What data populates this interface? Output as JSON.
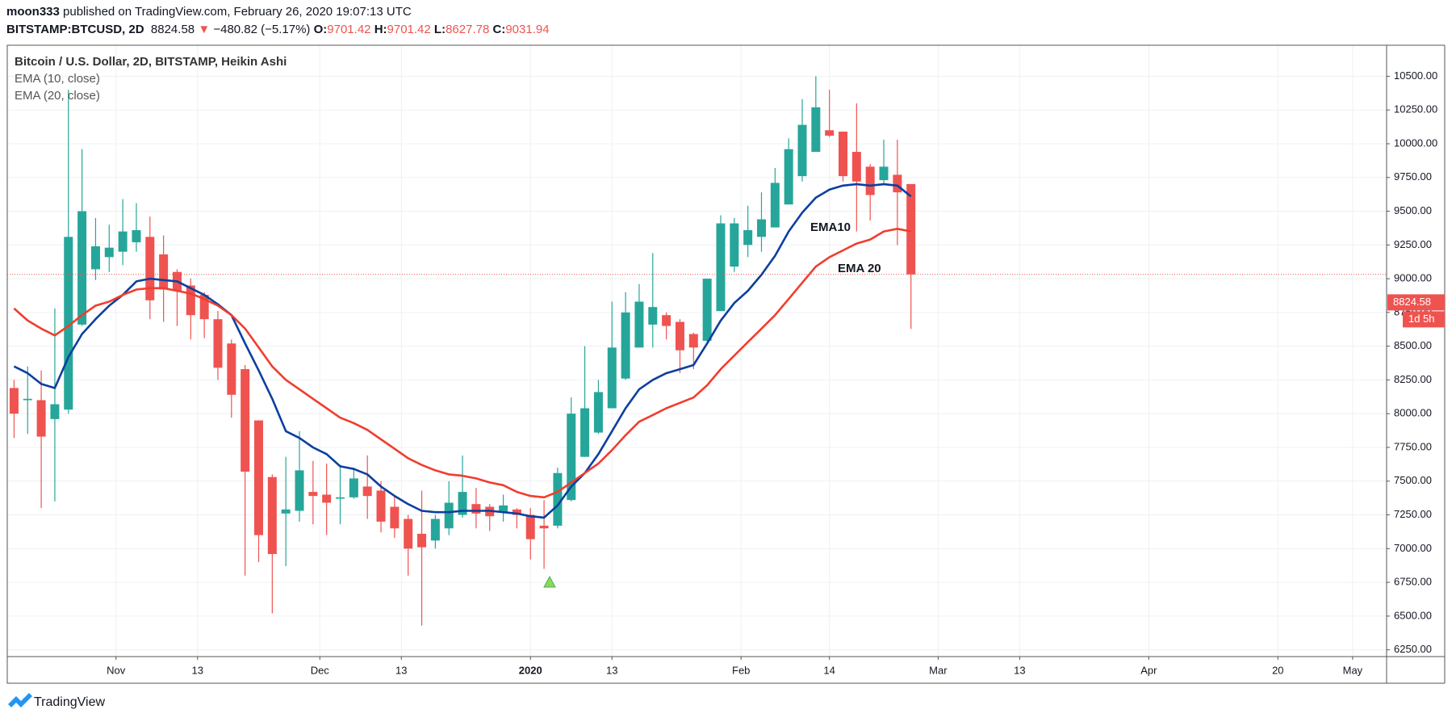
{
  "header": {
    "publisher": "moon333",
    "published": "published on TradingView.com, February 26, 2020 19:07:13 UTC",
    "symbol": "BITSTAMP:BTCUSD, 2D",
    "change": "−480.82 (−5.17%)",
    "down_arrow": "▼",
    "ohlc_labels": [
      "O:",
      "H:",
      "L:",
      "C:"
    ]
  },
  "watermark": "TradingView",
  "chart_data": {
    "type": "candlestick",
    "title": "Bitcoin / U.S. Dollar, 2D, BITSTAMP, Heikin Ashi",
    "last_price": 8824.58,
    "countdown": "1d 5h",
    "up_color": "#26a69a",
    "down_color": "#ef5350",
    "x": [
      "2019-10-17",
      "2019-10-19",
      "2019-10-21",
      "2019-10-23",
      "2019-10-25",
      "2019-10-27",
      "2019-10-29",
      "2019-10-31",
      "2019-11-02",
      "2019-11-04",
      "2019-11-06",
      "2019-11-08",
      "2019-11-10",
      "2019-11-12",
      "2019-11-14",
      "2019-11-16",
      "2019-11-18",
      "2019-11-20",
      "2019-11-22",
      "2019-11-24",
      "2019-11-26",
      "2019-11-28",
      "2019-11-30",
      "2019-12-02",
      "2019-12-04",
      "2019-12-06",
      "2019-12-08",
      "2019-12-10",
      "2019-12-12",
      "2019-12-14",
      "2019-12-16",
      "2019-12-18",
      "2019-12-20",
      "2019-12-22",
      "2019-12-24",
      "2019-12-26",
      "2019-12-28",
      "2019-12-30",
      "2020-01-01",
      "2020-01-03",
      "2020-01-05",
      "2020-01-07",
      "2020-01-09",
      "2020-01-11",
      "2020-01-13",
      "2020-01-15",
      "2020-01-17",
      "2020-01-19",
      "2020-01-21",
      "2020-01-23",
      "2020-01-25",
      "2020-01-27",
      "2020-01-29",
      "2020-01-31",
      "2020-02-02",
      "2020-02-04",
      "2020-02-06",
      "2020-02-08",
      "2020-02-10",
      "2020-02-12",
      "2020-02-14",
      "2020-02-16",
      "2020-02-18",
      "2020-02-20",
      "2020-02-22",
      "2020-02-24",
      "2020-02-26"
    ],
    "open": [
      8190,
      8100,
      8100,
      7960,
      8030,
      8660,
      9070,
      9160,
      9200,
      9270,
      9310,
      9180,
      9050,
      8950,
      8880,
      8700,
      8520,
      8330,
      7950,
      7530,
      7260,
      7280,
      7420,
      7400,
      7370,
      7380,
      7460,
      7430,
      7310,
      7220,
      7110,
      7060,
      7150,
      7250,
      7330,
      7310,
      7270,
      7290,
      7250,
      7170,
      7170,
      7360,
      7680,
      7860,
      8040,
      8260,
      8490,
      8660,
      8730,
      8680,
      8590,
      8540,
      8760,
      9090,
      9250,
      9310,
      9380,
      9550,
      9760,
      9940,
      10100,
      10090,
      9940,
      9830,
      9730,
      9770,
      9701.42
    ],
    "high": [
      8250,
      8350,
      8320,
      8780,
      10400,
      9960,
      9450,
      9400,
      9590,
      9560,
      9460,
      9320,
      9070,
      9000,
      8900,
      8760,
      8550,
      8360,
      7950,
      7550,
      7680,
      7870,
      7650,
      7630,
      7620,
      7600,
      7690,
      7500,
      7390,
      7250,
      7430,
      7250,
      7500,
      7690,
      7450,
      7330,
      7400,
      7300,
      7300,
      7360,
      7600,
      8120,
      8500,
      8250,
      8830,
      8900,
      8960,
      9190,
      8750,
      8700,
      8600,
      9000,
      9470,
      9450,
      9540,
      9640,
      9820,
      10040,
      10330,
      10500,
      10400,
      10090,
      10300,
      9850,
      10030,
      10030,
      9701.42
    ],
    "low": [
      7820,
      7850,
      7300,
      7350,
      8000,
      8650,
      8990,
      9050,
      9100,
      9200,
      8700,
      8680,
      8650,
      8550,
      8560,
      8250,
      7970,
      6800,
      6900,
      6520,
      6870,
      7200,
      7180,
      7100,
      7180,
      7370,
      7220,
      7120,
      7080,
      6800,
      6430,
      7000,
      7100,
      7230,
      7150,
      7130,
      7200,
      7150,
      6920,
      6850,
      7150,
      7350,
      7680,
      7850,
      8040,
      8250,
      8490,
      8490,
      8550,
      8300,
      8330,
      8530,
      8760,
      9050,
      9160,
      9200,
      9380,
      9550,
      9720,
      9940,
      10050,
      9720,
      9350,
      9430,
      9700,
      9250,
      8627.78
    ],
    "close": [
      8000,
      8110,
      7830,
      8070,
      9310,
      9500,
      9240,
      9230,
      9350,
      9360,
      8840,
      8920,
      8910,
      8730,
      8700,
      8340,
      8140,
      7570,
      7100,
      6960,
      7290,
      7580,
      7390,
      7340,
      7380,
      7520,
      7390,
      7200,
      7150,
      7000,
      7010,
      7220,
      7340,
      7420,
      7260,
      7240,
      7320,
      7250,
      7070,
      7150,
      7560,
      8000,
      8040,
      8160,
      8490,
      8750,
      8830,
      8790,
      8650,
      8470,
      8490,
      9000,
      9410,
      9410,
      9360,
      9440,
      9710,
      9960,
      10140,
      10270,
      10060,
      9760,
      9720,
      9620,
      9830,
      9640,
      9031.94
    ],
    "series": [
      {
        "name": "EMA (10, close)",
        "color": "#0d3f9e",
        "values": [
          8350,
          8300,
          8220,
          8190,
          8420,
          8590,
          8700,
          8800,
          8880,
          8980,
          9000,
          8990,
          8980,
          8930,
          8880,
          8810,
          8730,
          8520,
          8320,
          8110,
          7870,
          7820,
          7750,
          7700,
          7610,
          7590,
          7550,
          7460,
          7390,
          7330,
          7280,
          7270,
          7270,
          7280,
          7280,
          7280,
          7270,
          7260,
          7240,
          7230,
          7320,
          7460,
          7560,
          7700,
          7870,
          8040,
          8180,
          8250,
          8300,
          8330,
          8360,
          8520,
          8690,
          8820,
          8910,
          9030,
          9170,
          9350,
          9490,
          9600,
          9660,
          9690,
          9700,
          9690,
          9700,
          9690,
          9610
        ]
      },
      {
        "name": "EMA (20, close)",
        "color": "#ef3e2e",
        "values": [
          8780,
          8690,
          8630,
          8580,
          8650,
          8730,
          8800,
          8830,
          8880,
          8920,
          8930,
          8930,
          8910,
          8890,
          8850,
          8800,
          8730,
          8630,
          8490,
          8350,
          8250,
          8180,
          8110,
          8040,
          7970,
          7930,
          7880,
          7810,
          7740,
          7670,
          7620,
          7580,
          7550,
          7540,
          7520,
          7490,
          7470,
          7420,
          7390,
          7380,
          7420,
          7490,
          7560,
          7630,
          7730,
          7840,
          7940,
          7990,
          8040,
          8080,
          8120,
          8210,
          8330,
          8430,
          8530,
          8630,
          8730,
          8850,
          8970,
          9090,
          9160,
          9210,
          9260,
          9290,
          9350,
          9370,
          9350
        ]
      }
    ],
    "annotations": [
      "EMA10",
      "EMA 20"
    ],
    "xlim": [
      "2019-10-16",
      "2020-05-06"
    ],
    "xticks": [
      {
        "value": "2019-11-01",
        "label": "Nov"
      },
      {
        "value": "2019-11-13",
        "label": "13"
      },
      {
        "value": "2019-12-01",
        "label": "Dec"
      },
      {
        "value": "2019-12-13",
        "label": "13"
      },
      {
        "value": "2020-01-01",
        "label": "2020"
      },
      {
        "value": "2020-01-13",
        "label": "13"
      },
      {
        "value": "2020-02-01",
        "label": "Feb"
      },
      {
        "value": "2020-02-14",
        "label": "14"
      },
      {
        "value": "2020-03-01",
        "label": "Mar"
      },
      {
        "value": "2020-03-13",
        "label": "13"
      },
      {
        "value": "2020-04-01",
        "label": "Apr"
      },
      {
        "value": "2020-04-20",
        "label": "20"
      },
      {
        "value": "2020-05-01",
        "label": "May"
      }
    ],
    "ylim": [
      6200,
      10730
    ],
    "yticks": [
      {
        "value": 6250,
        "label": "6250.00"
      },
      {
        "value": 6500,
        "label": "6500.00"
      },
      {
        "value": 6750,
        "label": "6750.00"
      },
      {
        "value": 7000,
        "label": "7000.00"
      },
      {
        "value": 7250,
        "label": "7250.00"
      },
      {
        "value": 7500,
        "label": "7500.00"
      },
      {
        "value": 7750,
        "label": "7750.00"
      },
      {
        "value": 8000,
        "label": "8000.00"
      },
      {
        "value": 8250,
        "label": "8250.00"
      },
      {
        "value": 8500,
        "label": "8500.00"
      },
      {
        "value": 8750,
        "label": "8750.00"
      },
      {
        "value": 9000,
        "label": "9000.00"
      },
      {
        "value": 9250,
        "label": "9250.00"
      },
      {
        "value": 9500,
        "label": "9500.00"
      },
      {
        "value": 9750,
        "label": "9750.00"
      },
      {
        "value": 10000,
        "label": "10000.00"
      },
      {
        "value": 10250,
        "label": "10250.00"
      },
      {
        "value": 10500,
        "label": "10500.00"
      }
    ],
    "grid": true
  }
}
